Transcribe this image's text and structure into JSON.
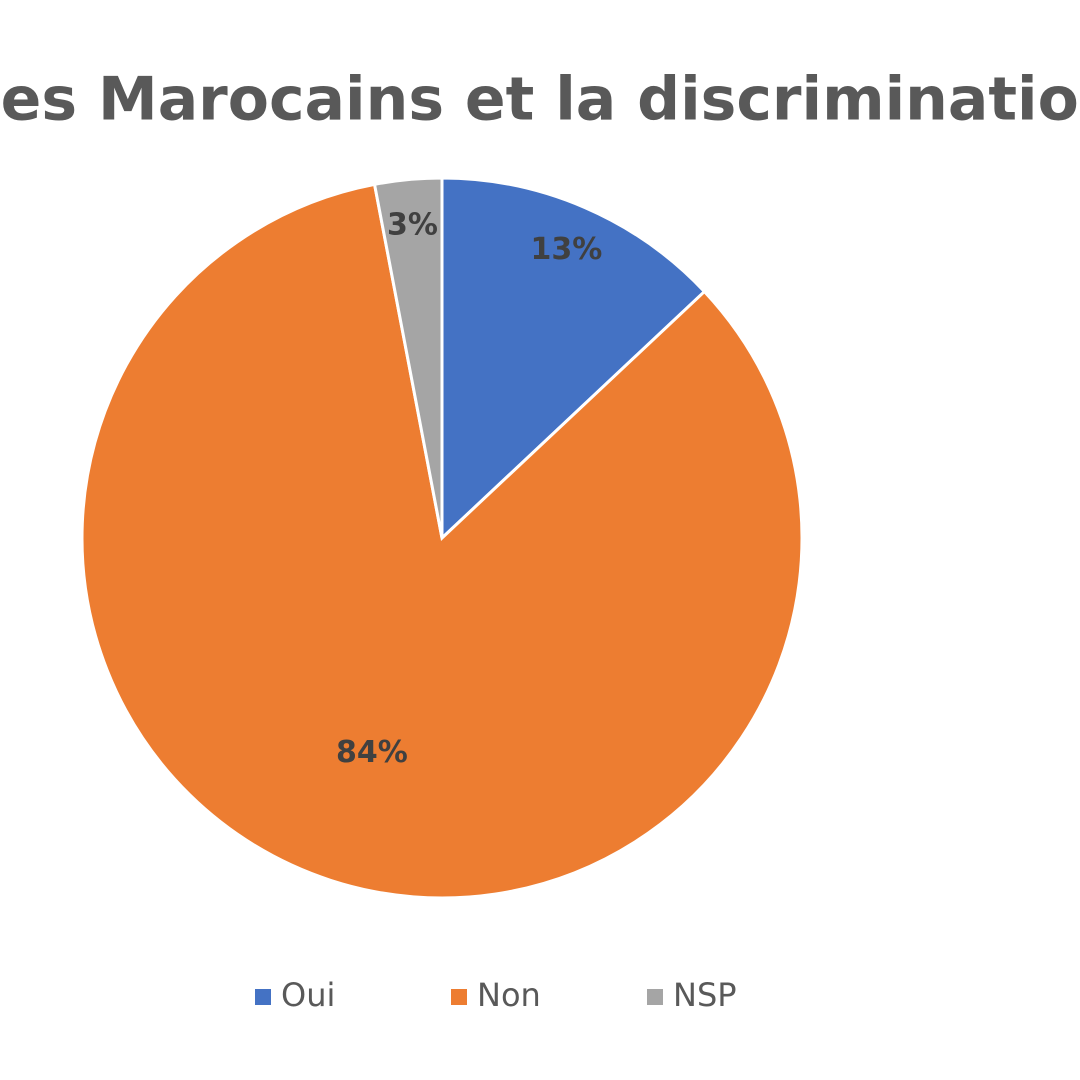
{
  "chart_data": {
    "type": "pie",
    "title": "Les Marocains et la discrimination",
    "categories": [
      "Oui",
      "Non",
      "NSP"
    ],
    "values": [
      13,
      84,
      3
    ],
    "value_labels": [
      "13%",
      "84%",
      "3%"
    ],
    "colors": [
      "#4472c4",
      "#ed7d31",
      "#a5a5a5"
    ],
    "legend": "bottom"
  }
}
